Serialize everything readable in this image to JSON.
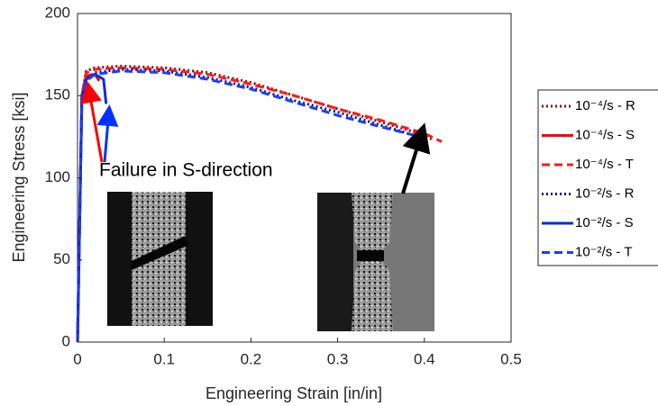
{
  "chart_data": {
    "type": "line",
    "xlabel": "Engineering Strain [in/in]",
    "ylabel": "Engineering Stress [ksi]",
    "annotation": "Failure in S-direction",
    "xlim": [
      0,
      0.5
    ],
    "xticks": [
      0,
      0.1,
      0.2,
      0.3,
      0.4,
      0.5
    ],
    "ylim": [
      0,
      200
    ],
    "yticks": [
      0,
      50,
      100,
      150,
      200
    ],
    "series": [
      {
        "name": "10⁻⁴/s - R",
        "color": "#8b0a0a",
        "style": "dotted",
        "x": [
          0,
          0.005,
          0.01,
          0.02,
          0.05,
          0.1,
          0.15,
          0.2,
          0.25,
          0.3,
          0.35,
          0.4,
          0.41
        ],
        "values": [
          0,
          150,
          165,
          167,
          168,
          167,
          164,
          158,
          150,
          142,
          134,
          126,
          123
        ]
      },
      {
        "name": "10⁻⁴/s - S",
        "color": "#e31010",
        "style": "solid",
        "x": [
          0,
          0.005,
          0.01,
          0.02,
          0.025
        ],
        "values": [
          0,
          150,
          162,
          163,
          159
        ]
      },
      {
        "name": "10⁻⁴/s - T",
        "color": "#ff1a1a",
        "style": "dashed",
        "x": [
          0,
          0.005,
          0.01,
          0.02,
          0.05,
          0.1,
          0.15,
          0.2,
          0.25,
          0.3,
          0.35,
          0.4,
          0.42
        ],
        "values": [
          0,
          150,
          164,
          166,
          167,
          166,
          163,
          157,
          150,
          142,
          135,
          127,
          122
        ]
      },
      {
        "name": "10⁻²/s - R",
        "color": "#10108c",
        "style": "dotted",
        "x": [
          0,
          0.005,
          0.01,
          0.02,
          0.05,
          0.1,
          0.15,
          0.2,
          0.25,
          0.3,
          0.35,
          0.4
        ],
        "values": [
          0,
          148,
          160,
          164,
          166,
          165,
          161,
          155,
          147,
          140,
          132,
          124
        ]
      },
      {
        "name": "10⁻²/s - S",
        "color": "#0a2ecc",
        "style": "solid",
        "x": [
          0,
          0.005,
          0.01,
          0.02,
          0.03,
          0.033
        ],
        "values": [
          0,
          148,
          160,
          163,
          160,
          145
        ]
      },
      {
        "name": "10⁻²/s - T",
        "color": "#1a3cff",
        "style": "dashed",
        "x": [
          0,
          0.005,
          0.01,
          0.02,
          0.05,
          0.1,
          0.15,
          0.2,
          0.25,
          0.3,
          0.35,
          0.395
        ],
        "values": [
          0,
          148,
          159,
          163,
          165,
          164,
          160,
          154,
          146,
          138,
          131,
          125
        ]
      }
    ]
  }
}
